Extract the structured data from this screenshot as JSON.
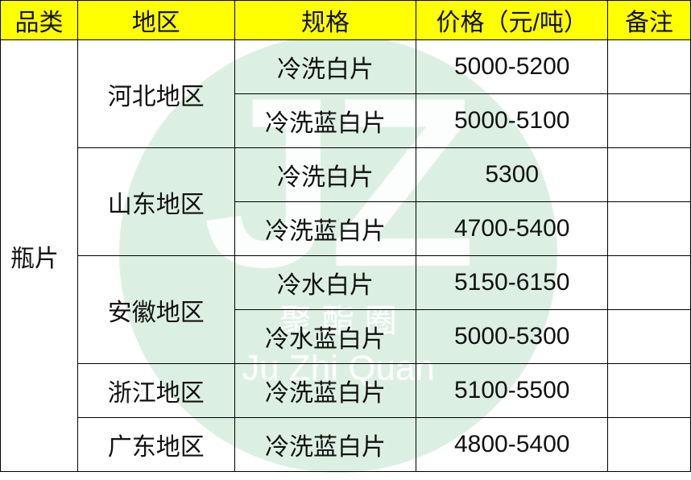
{
  "header": [
    "品类",
    "地区",
    "规格",
    "价格（元/吨）",
    "备注"
  ],
  "category": "瓶片",
  "regions": [
    {
      "name": "河北地区",
      "items": [
        {
          "spec": "冷洗白片",
          "price": "5000-5200",
          "note": ""
        },
        {
          "spec": "冷洗蓝白片",
          "price": "5000-5100",
          "note": ""
        }
      ]
    },
    {
      "name": "山东地区",
      "items": [
        {
          "spec": "冷洗白片",
          "price": "5300",
          "note": ""
        },
        {
          "spec": "冷洗蓝白片",
          "price": "4700-5400",
          "note": ""
        }
      ]
    },
    {
      "name": "安徽地区",
      "items": [
        {
          "spec": "冷水白片",
          "price": "5150-6150",
          "note": ""
        },
        {
          "spec": "冷水蓝白片",
          "price": "5000-5300",
          "note": ""
        }
      ]
    },
    {
      "name": "浙江地区",
      "items": [
        {
          "spec": "冷洗蓝白片",
          "price": "5100-5500",
          "note": ""
        }
      ]
    },
    {
      "name": "广东地区",
      "items": [
        {
          "spec": "冷洗蓝白片",
          "price": "4800-5400",
          "note": ""
        }
      ]
    }
  ],
  "watermark": {
    "logo": "JZ",
    "cn": "聚 酯 圈",
    "en": "Ju Zhi Quan",
    "color": "#dcefe3"
  },
  "colors": {
    "header_bg": "#ffff00"
  }
}
